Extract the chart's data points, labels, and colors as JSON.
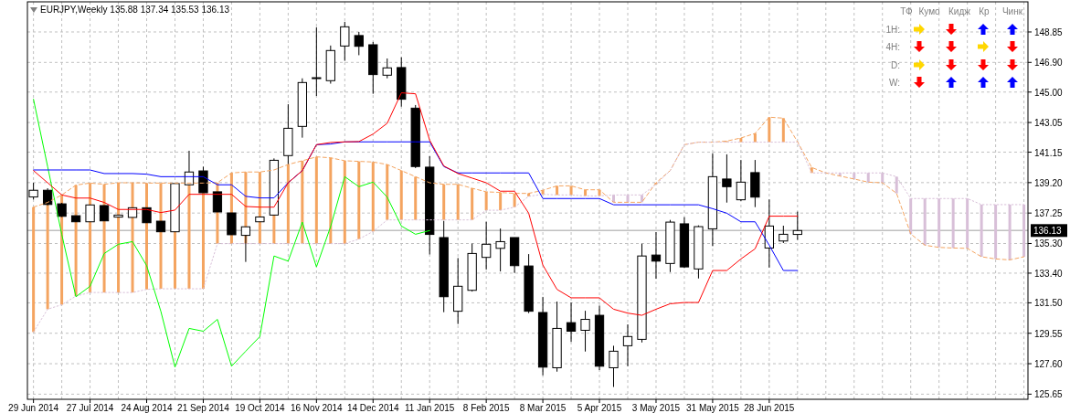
{
  "chart_data": {
    "type": "candlestick",
    "title": "EURJPY,Weekly  135.88 137.34 135.53 136.13",
    "x": [
      "2014-06-29",
      "2014-07-06",
      "2014-07-13",
      "2014-07-20",
      "2014-07-27",
      "2014-08-03",
      "2014-08-10",
      "2014-08-17",
      "2014-08-24",
      "2014-08-31",
      "2014-09-07",
      "2014-09-14",
      "2014-09-21",
      "2014-09-28",
      "2014-10-05",
      "2014-10-12",
      "2014-10-19",
      "2014-10-26",
      "2014-11-02",
      "2014-11-09",
      "2014-11-16",
      "2014-11-23",
      "2014-11-30",
      "2014-12-07",
      "2014-12-14",
      "2014-12-21",
      "2014-12-28",
      "2015-01-04",
      "2015-01-11",
      "2015-01-18",
      "2015-01-25",
      "2015-02-01",
      "2015-02-08",
      "2015-02-15",
      "2015-02-22",
      "2015-03-01",
      "2015-03-08",
      "2015-03-15",
      "2015-03-22",
      "2015-03-29",
      "2015-04-05",
      "2015-04-12",
      "2015-04-19",
      "2015-04-26",
      "2015-05-03",
      "2015-05-10",
      "2015-05-17",
      "2015-05-24",
      "2015-05-31",
      "2015-06-07",
      "2015-06-14",
      "2015-06-21",
      "2015-06-28",
      "2015-07-05",
      "2015-07-12"
    ],
    "ohlc": [
      [
        138.28,
        139.19,
        138.12,
        138.71
      ],
      [
        138.71,
        138.84,
        137.75,
        137.8
      ],
      [
        137.84,
        137.9,
        137.0,
        137.04
      ],
      [
        137.08,
        137.08,
        136.69,
        136.69
      ],
      [
        136.69,
        137.77,
        136.69,
        137.77
      ],
      [
        137.73,
        137.73,
        136.75,
        136.75
      ],
      [
        136.99,
        137.12,
        136.99,
        137.12
      ],
      [
        136.97,
        137.59,
        136.97,
        137.59
      ],
      [
        137.59,
        137.59,
        136.63,
        136.63
      ],
      [
        136.73,
        136.73,
        136.05,
        136.05
      ],
      [
        136.05,
        139.14,
        136.05,
        139.14
      ],
      [
        139.06,
        141.24,
        139.06,
        139.88
      ],
      [
        139.95,
        140.22,
        138.55,
        138.55
      ],
      [
        138.61,
        138.61,
        137.32,
        137.32
      ],
      [
        137.26,
        137.26,
        135.86,
        135.86
      ],
      [
        135.82,
        136.37,
        134.12,
        136.37
      ],
      [
        136.69,
        137.0,
        136.69,
        137.0
      ],
      [
        137.12,
        140.75,
        137.12,
        140.63
      ],
      [
        140.93,
        144.22,
        140.36,
        142.68
      ],
      [
        142.8,
        145.88,
        142.08,
        145.61
      ],
      [
        145.88,
        149.15,
        144.75,
        145.92
      ],
      [
        145.73,
        147.98,
        145.54,
        147.66
      ],
      [
        147.95,
        149.5,
        147.0,
        149.18
      ],
      [
        148.62,
        148.85,
        147.36,
        147.93
      ],
      [
        148.03,
        148.21,
        144.89,
        146.12
      ],
      [
        146.08,
        147.15,
        145.88,
        146.55
      ],
      [
        146.57,
        147.23,
        144.07,
        144.54
      ],
      [
        143.97,
        144.17,
        140.13,
        140.23
      ],
      [
        140.19,
        140.89,
        134.6,
        135.88
      ],
      [
        135.68,
        136.75,
        130.9,
        131.89
      ],
      [
        130.96,
        134.37,
        130.14,
        132.56
      ],
      [
        132.3,
        135.3,
        132.22,
        134.66
      ],
      [
        134.41,
        136.69,
        133.63,
        135.25
      ],
      [
        134.99,
        136.26,
        133.51,
        135.42
      ],
      [
        135.68,
        135.68,
        133.42,
        133.88
      ],
      [
        133.86,
        134.62,
        130.84,
        130.96
      ],
      [
        130.88,
        131.88,
        126.86,
        127.38
      ],
      [
        127.34,
        131.58,
        127.09,
        129.86
      ],
      [
        130.23,
        131.52,
        129.0,
        129.68
      ],
      [
        129.74,
        130.99,
        128.38,
        130.44
      ],
      [
        130.7,
        131.31,
        127.19,
        127.44
      ],
      [
        127.34,
        128.75,
        126.11,
        128.4
      ],
      [
        128.75,
        130.12,
        127.44,
        129.34
      ],
      [
        129.16,
        135.29,
        128.96,
        134.5
      ],
      [
        134.56,
        136.03,
        133.04,
        134.17
      ],
      [
        134.02,
        136.81,
        133.47,
        136.67
      ],
      [
        136.56,
        136.98,
        133.73,
        133.8
      ],
      [
        133.67,
        136.46,
        133.06,
        136.38
      ],
      [
        136.24,
        141.08,
        135.13,
        139.58
      ],
      [
        139.43,
        141.01,
        137.92,
        138.94
      ],
      [
        138.1,
        140.65,
        138.02,
        139.23
      ],
      [
        139.84,
        140.65,
        137.63,
        138.27
      ],
      [
        135.01,
        138.12,
        133.76,
        136.42
      ],
      [
        135.46,
        136.44,
        135.33,
        135.89
      ],
      [
        135.88,
        137.34,
        135.53,
        136.13
      ]
    ],
    "series": [
      {
        "type": "line",
        "line_style": "dashed",
        "color": "#f4a460",
        "x": [
          "2014-06-29",
          "2014-07-06",
          "2014-07-13",
          "2014-07-20",
          "2014-07-27",
          "2014-08-03",
          "2014-08-10",
          "2014-08-17",
          "2014-08-24",
          "2014-08-31",
          "2014-09-07",
          "2014-09-14",
          "2014-09-21",
          "2014-09-28",
          "2014-10-05",
          "2014-10-12",
          "2014-10-19",
          "2014-10-26",
          "2014-11-02",
          "2014-11-09",
          "2014-11-16",
          "2014-11-23",
          "2014-11-30",
          "2014-12-07",
          "2014-12-14",
          "2014-12-21",
          "2014-12-28",
          "2015-01-04",
          "2015-01-11",
          "2015-01-18",
          "2015-01-25",
          "2015-02-01",
          "2015-02-08",
          "2015-02-15",
          "2015-02-22",
          "2015-03-01",
          "2015-03-08",
          "2015-03-15",
          "2015-03-22",
          "2015-03-29",
          "2015-04-05",
          "2015-04-12",
          "2015-04-19",
          "2015-04-26",
          "2015-05-03",
          "2015-05-10",
          "2015-05-17",
          "2015-05-24",
          "2015-05-31",
          "2015-06-07",
          "2015-06-14",
          "2015-06-21",
          "2015-06-28",
          "2015-07-05",
          "2015-07-12",
          "2015-07-19",
          "2015-07-26",
          "2015-08-02",
          "2015-08-09",
          "2015-08-16",
          "2015-08-23",
          "2015-08-30",
          "2015-09-06",
          "2015-09-13",
          "2015-09-20",
          "2015-09-27",
          "2015-10-04",
          "2015-10-11",
          "2015-10-18",
          "2015-10-25",
          "2015-11-01"
        ],
        "values": [
          137.63,
          137.93,
          138.41,
          139.04,
          139.17,
          139.09,
          139.19,
          139.19,
          139.17,
          139.17,
          139.17,
          139.17,
          139.17,
          139.19,
          139.82,
          139.88,
          139.88,
          140.01,
          140.36,
          140.6,
          140.85,
          140.79,
          140.6,
          140.56,
          140.52,
          140.36,
          139.97,
          139.58,
          139.19,
          139.09,
          139.09,
          138.84,
          138.61,
          138.57,
          138.51,
          138.51,
          138.71,
          138.99,
          138.99,
          138.74,
          138.74,
          137.94,
          137.94,
          137.94,
          139.19,
          139.97,
          141.63,
          141.79,
          141.79,
          141.86,
          142.06,
          142.35,
          143.39,
          143.33,
          141.81,
          140.17,
          139.82,
          139.62,
          139.43,
          139.23,
          139.19,
          138.51,
          135.91,
          135.19,
          135.05,
          135.01,
          134.99,
          134.45,
          134.31,
          134.25,
          134.45
        ]
      },
      {
        "type": "line",
        "line_style": "dotted",
        "color": "#d8bfd8",
        "x": [
          "2014-06-29",
          "2014-07-06",
          "2014-07-13",
          "2014-07-20",
          "2014-07-27",
          "2014-08-03",
          "2014-08-10",
          "2014-08-17",
          "2014-08-24",
          "2014-08-31",
          "2014-09-07",
          "2014-09-14",
          "2014-09-21",
          "2014-09-28",
          "2014-10-05",
          "2014-10-12",
          "2014-10-19",
          "2014-10-26",
          "2014-11-02",
          "2014-11-09",
          "2014-11-16",
          "2014-11-23",
          "2014-11-30",
          "2014-12-07",
          "2014-12-14",
          "2014-12-21",
          "2014-12-28",
          "2015-01-04",
          "2015-01-11",
          "2015-01-18",
          "2015-01-25",
          "2015-02-01",
          "2015-02-08",
          "2015-02-15",
          "2015-02-22",
          "2015-03-01",
          "2015-03-08",
          "2015-03-15",
          "2015-03-22",
          "2015-03-29",
          "2015-04-05",
          "2015-04-12",
          "2015-04-19",
          "2015-04-26",
          "2015-05-03",
          "2015-05-10",
          "2015-05-17",
          "2015-05-24",
          "2015-05-31",
          "2015-06-07",
          "2015-06-14",
          "2015-06-21",
          "2015-06-28",
          "2015-07-05",
          "2015-07-12",
          "2015-07-19",
          "2015-07-26",
          "2015-08-02",
          "2015-08-09",
          "2015-08-16",
          "2015-08-23",
          "2015-08-30",
          "2015-09-06",
          "2015-09-13",
          "2015-09-20",
          "2015-09-27",
          "2015-10-04",
          "2015-10-11",
          "2015-10-18",
          "2015-10-25",
          "2015-11-01"
        ],
        "values": [
          129.63,
          131.09,
          131.38,
          131.93,
          132.16,
          132.16,
          132.16,
          132.16,
          132.36,
          132.4,
          132.4,
          132.4,
          132.4,
          135.29,
          135.29,
          135.29,
          135.29,
          135.29,
          135.29,
          135.29,
          135.29,
          135.29,
          135.29,
          135.58,
          136.07,
          136.81,
          136.81,
          136.81,
          136.81,
          136.81,
          136.81,
          136.81,
          137.43,
          137.43,
          137.63,
          138.32,
          138.45,
          138.41,
          138.41,
          138.35,
          138.35,
          138.41,
          138.41,
          138.41,
          139.09,
          139.97,
          141.63,
          141.79,
          141.79,
          141.79,
          141.79,
          141.79,
          141.79,
          141.79,
          141.79,
          139.82,
          139.82,
          139.82,
          139.82,
          139.82,
          139.82,
          139.58,
          138.18,
          138.18,
          138.18,
          138.18,
          138.18,
          137.79,
          137.79,
          137.79,
          137.79
        ]
      },
      {
        "type": "line",
        "line_style": "solid",
        "color": "#00ff00",
        "x": [
          "2014-06-29",
          "2014-07-06",
          "2014-07-13",
          "2014-07-20",
          "2014-07-27",
          "2014-08-03",
          "2014-08-10",
          "2014-08-17",
          "2014-08-24",
          "2014-08-31",
          "2014-09-07",
          "2014-09-14",
          "2014-09-21",
          "2014-09-28",
          "2014-10-05",
          "2014-10-12",
          "2014-10-19",
          "2014-10-26",
          "2014-11-02",
          "2014-11-09",
          "2014-11-16",
          "2014-11-23",
          "2014-11-30",
          "2014-12-07",
          "2014-12-14",
          "2014-12-21",
          "2014-12-28",
          "2015-01-04",
          "2015-01-11"
        ],
        "values": [
          144.54,
          140.23,
          135.88,
          131.89,
          132.56,
          134.66,
          135.25,
          135.42,
          133.88,
          130.96,
          127.38,
          129.86,
          129.68,
          130.44,
          127.44,
          128.4,
          129.34,
          134.5,
          134.17,
          136.67,
          133.8,
          136.38,
          139.58,
          138.94,
          139.23,
          138.27,
          136.42,
          135.89,
          136.13
        ]
      },
      {
        "type": "line",
        "line_style": "solid",
        "color": "#0000ff",
        "values": [
          140.01,
          140.01,
          140.01,
          140.01,
          140.01,
          139.78,
          139.78,
          139.78,
          139.74,
          139.58,
          139.58,
          139.58,
          139.58,
          139.06,
          139.06,
          138.32,
          138.22,
          138.22,
          139.19,
          139.97,
          141.63,
          141.67,
          141.81,
          141.81,
          141.81,
          141.81,
          141.81,
          141.81,
          141.81,
          140.23,
          139.82,
          139.82,
          139.82,
          139.82,
          139.82,
          139.82,
          138.18,
          138.18,
          138.18,
          138.18,
          138.18,
          137.78,
          137.78,
          137.78,
          137.78,
          137.78,
          137.78,
          137.78,
          137.53,
          137.24,
          136.69,
          136.69,
          135.19,
          133.57,
          133.57
        ]
      },
      {
        "type": "line",
        "line_style": "solid",
        "color": "#ff0000",
        "values": [
          139.97,
          139.19,
          138.41,
          138.21,
          138.21,
          137.93,
          137.48,
          137.48,
          137.48,
          137.28,
          137.44,
          138.45,
          138.45,
          138.45,
          138.45,
          137.67,
          137.63,
          137.63,
          139.19,
          139.97,
          141.63,
          141.77,
          141.81,
          141.83,
          142.31,
          143.0,
          144.95,
          144.89,
          141.92,
          140.27,
          139.78,
          139.49,
          139.19,
          138.65,
          138.65,
          137.24,
          133.92,
          132.36,
          131.82,
          131.82,
          131.82,
          131.09,
          130.84,
          130.7,
          131.09,
          131.44,
          131.52,
          131.52,
          133.57,
          133.57,
          134.31,
          134.96,
          137.05,
          137.05,
          137.05
        ]
      }
    ],
    "xlim": [
      "2014-06-26",
      "2015-11-03"
    ],
    "xticks": [
      {
        "value": "2014-06-29",
        "label": "29 Jun 2014"
      },
      {
        "value": "2014-07-13",
        "label": null
      },
      {
        "value": "2014-07-27",
        "label": "27 Jul 2014"
      },
      {
        "value": "2014-08-10",
        "label": null
      },
      {
        "value": "2014-08-24",
        "label": "24 Aug 2014"
      },
      {
        "value": "2014-09-07",
        "label": null
      },
      {
        "value": "2014-09-21",
        "label": "21 Sep 2014"
      },
      {
        "value": "2014-10-05",
        "label": null
      },
      {
        "value": "2014-10-19",
        "label": "19 Oct 2014"
      },
      {
        "value": "2014-11-02",
        "label": null
      },
      {
        "value": "2014-11-16",
        "label": "16 Nov 2014"
      },
      {
        "value": "2014-11-30",
        "label": null
      },
      {
        "value": "2014-12-14",
        "label": "14 Dec 2014"
      },
      {
        "value": "2014-12-28",
        "label": null
      },
      {
        "value": "2015-01-11",
        "label": "11 Jan 2015"
      },
      {
        "value": "2015-01-25",
        "label": null
      },
      {
        "value": "2015-02-08",
        "label": "8 Feb 2015"
      },
      {
        "value": "2015-02-22",
        "label": null
      },
      {
        "value": "2015-03-08",
        "label": "8 Mar 2015"
      },
      {
        "value": "2015-03-22",
        "label": null
      },
      {
        "value": "2015-04-05",
        "label": "5 Apr 2015"
      },
      {
        "value": "2015-04-19",
        "label": null
      },
      {
        "value": "2015-05-03",
        "label": "3 May 2015"
      },
      {
        "value": "2015-05-17",
        "label": null
      },
      {
        "value": "2015-05-31",
        "label": "31 May 2015"
      },
      {
        "value": "2015-06-14",
        "label": null
      },
      {
        "value": "2015-06-28",
        "label": "28 Jun 2015"
      },
      {
        "value": "2015-07-12",
        "label": null
      },
      {
        "value": "2015-07-26",
        "label": null
      },
      {
        "value": "2015-08-09",
        "label": null
      },
      {
        "value": "2015-08-23",
        "label": null
      },
      {
        "value": "2015-09-06",
        "label": null
      },
      {
        "value": "2015-09-20",
        "label": null
      },
      {
        "value": "2015-10-04",
        "label": null
      },
      {
        "value": "2015-10-18",
        "label": null
      },
      {
        "value": "2015-11-01",
        "label": null
      }
    ],
    "ylim": [
      125.32,
      150.78
    ],
    "yticks": [
      125.65,
      {
        "value": 127.6,
        "label": "127.60"
      },
      129.55,
      {
        "value": 131.5,
        "label": "131.50"
      },
      {
        "value": 133.4,
        "label": "133.40"
      },
      {
        "value": 135.3,
        "label": "135.30"
      },
      137.25,
      {
        "value": 139.2,
        "label": "139.20"
      },
      141.15,
      143.05,
      {
        "value": 145,
        "label": "145.00"
      },
      {
        "value": 146.9,
        "label": "146.90"
      },
      148.85
    ],
    "grid": true,
    "ref_lines": [
      {
        "axis": "y",
        "value": 136.13,
        "label": "136.13",
        "color": "#c0c0c0"
      }
    ],
    "annotations": [
      "ТФ",
      "Кумо",
      "Кидж",
      "Кр",
      "Чинк",
      "1H:",
      "4H:",
      "D:",
      "W:"
    ]
  }
}
